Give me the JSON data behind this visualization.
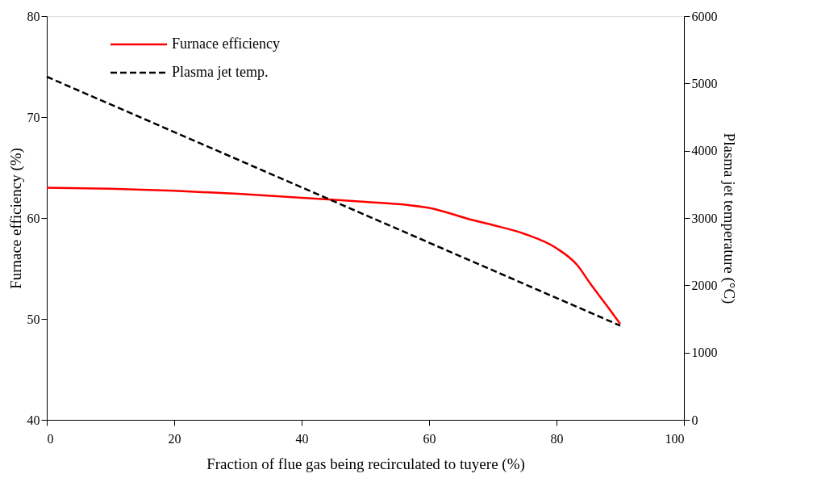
{
  "chart_data": {
    "type": "line",
    "xlabel": "Fraction of flue gas being recirculated to tuyere (%)",
    "ylabel": "Furnace efficiency (%)",
    "y2label": "Plasma jet temperature (°C)",
    "xlim": [
      0,
      100
    ],
    "xticks": [
      0,
      20,
      40,
      60,
      80,
      100
    ],
    "ylim": [
      40,
      80
    ],
    "yticks": [
      40,
      50,
      60,
      70,
      80
    ],
    "y2lim": [
      0,
      6000
    ],
    "y2ticks": [
      0,
      1000,
      2000,
      3000,
      4000,
      5000,
      6000
    ],
    "grid": false,
    "legend": "top left",
    "marker": "none",
    "series": [
      {
        "name": "Furnace efficiency",
        "color": "#ff0000",
        "line_style": "solid",
        "x": [
          0,
          10,
          20,
          30,
          40,
          50,
          56.5,
          60,
          66.8,
          70,
          75.1,
          80,
          83.3,
          85.3,
          87.8,
          90
        ],
        "values": [
          63.0,
          62.9,
          62.7,
          62.4,
          62.0,
          61.6,
          61.3,
          61.0,
          59.8,
          59.3,
          58.4,
          57.0,
          55.3,
          53.5,
          51.4,
          49.5
        ]
      },
      {
        "name": "Plasma jet temp.",
        "color": "#000000",
        "line_style": "dashed",
        "axis": "y2",
        "x": [
          0,
          90
        ],
        "values": [
          5100,
          1400
        ]
      }
    ]
  }
}
